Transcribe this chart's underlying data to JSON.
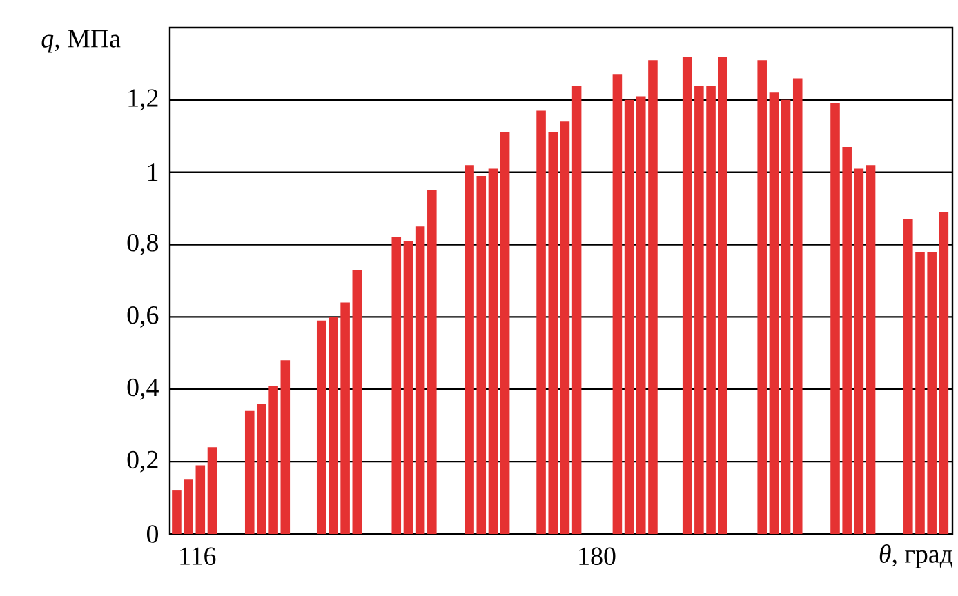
{
  "chart_data": {
    "type": "bar",
    "xlabel": "*θ*, град",
    "ylabel": "*q*, МПа",
    "color": "#e53232",
    "x": [
      112.7,
      114.6,
      116.5,
      118.4,
      124.4,
      126.3,
      128.2,
      130.1,
      135.9,
      137.8,
      139.7,
      141.6,
      147.9,
      149.8,
      151.7,
      153.6,
      159.6,
      161.5,
      163.4,
      165.3,
      171.1,
      173.0,
      174.9,
      176.8,
      183.3,
      185.2,
      187.1,
      189.0,
      194.5,
      196.4,
      198.3,
      200.2,
      206.5,
      208.4,
      210.3,
      212.2,
      218.2,
      220.1,
      222.0,
      223.9,
      229.9,
      231.8,
      233.7,
      235.6
    ],
    "values": [
      0.12,
      0.15,
      0.19,
      0.24,
      0.34,
      0.36,
      0.41,
      0.48,
      0.59,
      0.6,
      0.64,
      0.73,
      0.82,
      0.81,
      0.85,
      0.95,
      1.02,
      0.99,
      1.01,
      1.11,
      1.17,
      1.11,
      1.14,
      1.24,
      1.27,
      1.2,
      1.21,
      1.31,
      1.32,
      1.24,
      1.24,
      1.32,
      1.31,
      1.22,
      1.2,
      1.26,
      1.19,
      1.07,
      1.01,
      1.02,
      0.87,
      0.78,
      0.78,
      0.89
    ],
    "xlim": [
      111.6,
      237.0
    ],
    "xticks": [
      116,
      180
    ],
    "ylim": [
      0,
      1.4
    ],
    "yticks": [
      0,
      {
        "value": 0.2,
        "label": "0,2"
      },
      {
        "value": 0.4,
        "label": "0,4"
      },
      {
        "value": 0.6,
        "label": "0,6"
      },
      {
        "value": 0.8,
        "label": "0,8"
      },
      1,
      {
        "value": 1.2,
        "label": "1,2"
      }
    ],
    "grid": "y"
  }
}
